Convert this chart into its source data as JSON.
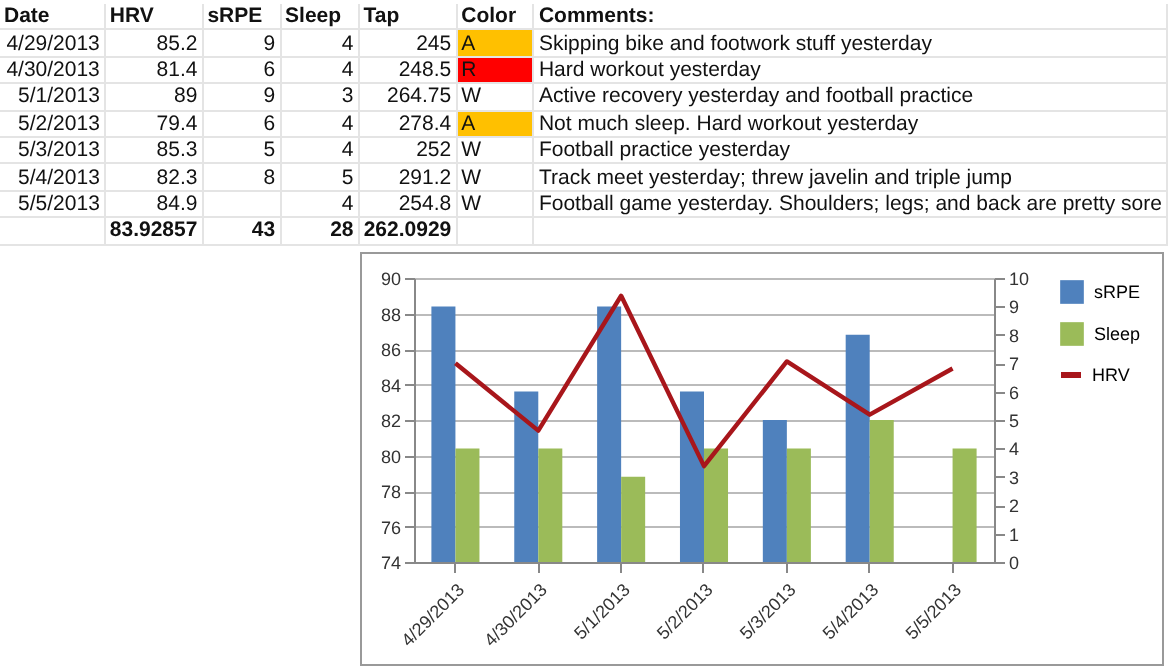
{
  "chart_data": [
    {
      "type": "other",
      "annotations": [
        "Date",
        "HRV",
        "sRPE",
        "Sleep",
        "Tap",
        "Color",
        "Comments:",
        "4/29/2013",
        "85.2",
        "9",
        "4",
        "245",
        "A",
        "Skipping bike and footwork stuff yesterday",
        "4/30/2013",
        "81.4",
        "6",
        "4",
        "248.5",
        "R",
        "Hard workout yesterday",
        "5/1/2013",
        "89",
        "9",
        "3",
        "264.75",
        "W",
        "Active recovery yesterday and football practice",
        "5/2/2013",
        "79.4",
        "6",
        "4",
        "278.4",
        "A",
        "Not much sleep. Hard workout yesterday",
        "5/3/2013",
        "85.3",
        "5",
        "4",
        "252",
        "W",
        "Football practice yesterday",
        "5/4/2013",
        "82.3",
        "8",
        "5",
        "291.2",
        "W",
        "Track meet yesterday; threw javelin and triple jump",
        "5/5/2013",
        "84.9",
        null,
        "4",
        "254.8",
        "W",
        "Football game yesterday. Shoulders; legs; and back are pretty sore",
        null,
        "83.92857",
        "43",
        "28",
        "262.0929",
        null,
        null
      ],
      "colors": [
        "#ffc000",
        "#ff0000",
        null,
        "#ffc000",
        null,
        null,
        null
      ]
    },
    {
      "type": "bar",
      "categories": [
        "4/29/2013",
        "4/30/2013",
        "5/1/2013",
        "5/2/2013",
        "5/3/2013",
        "5/4/2013",
        "5/5/2013"
      ],
      "series": [
        {
          "name": "sRPE",
          "color": "#4f81bd",
          "axis": "y2",
          "values": [
            9,
            6,
            9,
            6,
            5,
            8,
            null
          ]
        },
        {
          "name": "Sleep",
          "color": "#9bbb59",
          "axis": "y2",
          "values": [
            4,
            4,
            3,
            4,
            4,
            5,
            4
          ]
        },
        {
          "name": "HRV",
          "type": "line",
          "color": "#a8161b",
          "values": [
            85.2,
            81.4,
            89,
            79.4,
            85.3,
            82.3,
            84.9
          ]
        }
      ],
      "ylim": [
        74,
        90
      ],
      "yticks": [
        74,
        76,
        78,
        80,
        82,
        84,
        86,
        88,
        90
      ],
      "y2lim": [
        0,
        10
      ],
      "y2ticks": [
        0,
        1,
        2,
        3,
        4,
        5,
        6,
        7,
        8,
        9,
        10
      ],
      "grid": "y",
      "legend": "right"
    }
  ]
}
